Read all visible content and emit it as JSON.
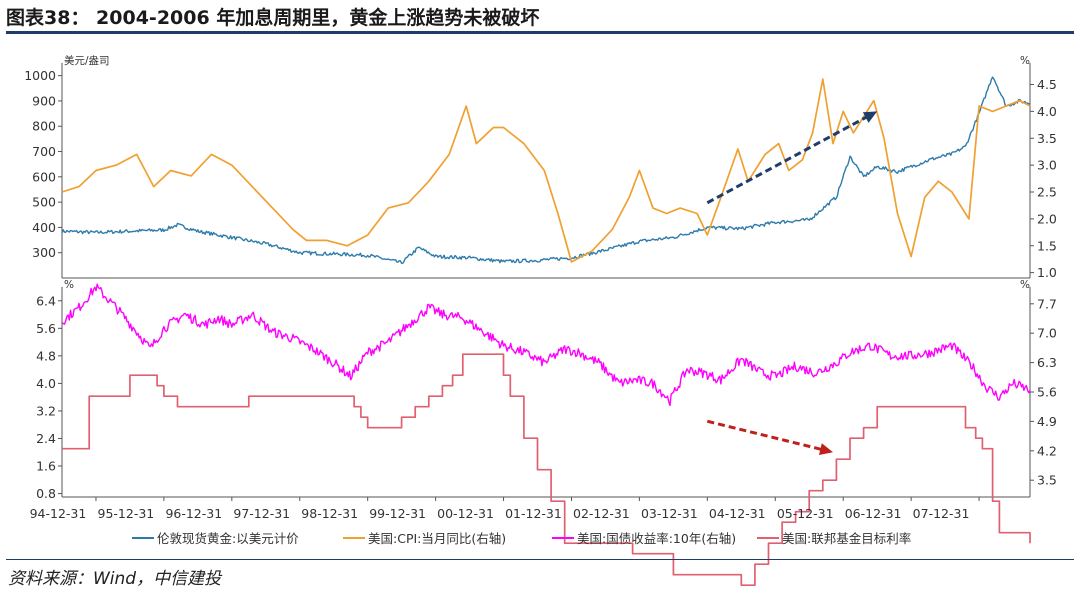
{
  "header": {
    "title": "图表38： 2004-2006 年加息周期里，黄金上涨趋势未被破坏"
  },
  "footer": {
    "source": "资料来源：Wind，中信建投"
  },
  "colors": {
    "gold": "#2e7bab",
    "cpi": "#f0a030",
    "yield": "#ff00ff",
    "fed": "#e06070",
    "arrow_top": "#1f3d6b",
    "arrow_bottom": "#c0201a",
    "rule": "#1f3d6b"
  },
  "chart_data": [
    {
      "type": "line",
      "panel": "top",
      "left_unit": "美元/盎司",
      "right_unit": "%",
      "left_ylim": [
        200,
        1050
      ],
      "left_ticks": [
        "1000",
        "900",
        "800",
        "700",
        "600",
        "500",
        "400",
        "300"
      ],
      "left_tick_values": [
        1000,
        900,
        800,
        700,
        600,
        500,
        400,
        300
      ],
      "right_ylim": [
        0.9,
        4.9
      ],
      "right_ticks": [
        "4.5",
        "4.0",
        "3.5",
        "3.0",
        "2.5",
        "2.0",
        "1.5",
        "1.0"
      ],
      "right_tick_values": [
        4.5,
        4.0,
        3.5,
        3.0,
        2.5,
        2.0,
        1.5,
        1.0
      ],
      "series": [
        {
          "name": "伦敦现货黄金:以美元计价",
          "axis": "left",
          "x": [
            1994.5,
            1995.0,
            1995.5,
            1996.0,
            1996.2,
            1996.5,
            1997.0,
            1997.5,
            1998.0,
            1998.5,
            1999.0,
            1999.5,
            1999.75,
            2000.0,
            2000.5,
            2001.0,
            2001.5,
            2002.0,
            2002.5,
            2003.0,
            2003.5,
            2004.0,
            2004.5,
            2005.0,
            2005.5,
            2005.9,
            2006.1,
            2006.3,
            2006.5,
            2006.8,
            2007.0,
            2007.3,
            2007.6,
            2007.8,
            2008.0,
            2008.2,
            2008.4,
            2008.6,
            2008.75
          ],
          "y": [
            385,
            380,
            385,
            390,
            410,
            385,
            360,
            335,
            300,
            295,
            290,
            260,
            320,
            285,
            280,
            265,
            270,
            280,
            310,
            345,
            360,
            400,
            395,
            420,
            430,
            520,
            680,
            600,
            640,
            620,
            640,
            670,
            690,
            720,
            850,
            1000,
            880,
            900,
            890
          ]
        },
        {
          "name": "美国:CPI:当月同比(右轴)",
          "axis": "right",
          "x": [
            1994.5,
            1994.75,
            1995.0,
            1995.3,
            1995.6,
            1995.85,
            1996.1,
            1996.4,
            1996.7,
            1997.0,
            1997.3,
            1997.6,
            1997.9,
            1998.1,
            1998.4,
            1998.7,
            1999.0,
            1999.3,
            1999.6,
            1999.9,
            2000.2,
            2000.45,
            2000.6,
            2000.85,
            2001.0,
            2001.3,
            2001.6,
            2001.8,
            2002.0,
            2002.3,
            2002.6,
            2002.85,
            2003.0,
            2003.2,
            2003.4,
            2003.6,
            2003.85,
            2004.0,
            2004.2,
            2004.45,
            2004.6,
            2004.85,
            2005.05,
            2005.2,
            2005.4,
            2005.55,
            2005.7,
            2005.85,
            2006.0,
            2006.15,
            2006.3,
            2006.45,
            2006.6,
            2006.8,
            2007.0,
            2007.2,
            2007.4,
            2007.6,
            2007.85,
            2008.0,
            2008.2,
            2008.4,
            2008.6,
            2008.75
          ],
          "y": [
            2.5,
            2.6,
            2.9,
            3.0,
            3.2,
            2.6,
            2.9,
            2.8,
            3.2,
            3.0,
            2.6,
            2.2,
            1.8,
            1.6,
            1.6,
            1.5,
            1.7,
            2.2,
            2.3,
            2.7,
            3.2,
            4.1,
            3.4,
            3.7,
            3.7,
            3.4,
            2.9,
            2.1,
            1.2,
            1.4,
            1.8,
            2.4,
            2.9,
            2.2,
            2.1,
            2.2,
            2.1,
            1.7,
            2.4,
            3.3,
            2.7,
            3.2,
            3.4,
            2.9,
            3.1,
            3.6,
            4.6,
            3.4,
            4.0,
            3.6,
            3.9,
            4.2,
            3.5,
            2.1,
            1.3,
            2.4,
            2.7,
            2.5,
            2.0,
            4.1,
            4.0,
            4.1,
            4.2,
            4.1
          ]
        }
      ],
      "annotations": [
        {
          "type": "arrow",
          "from": [
            2004.0,
            2.3
          ],
          "to": [
            2006.5,
            4.0
          ],
          "color": "#1f3d6b"
        }
      ]
    },
    {
      "type": "line",
      "panel": "bottom",
      "left_unit": "%",
      "right_unit": "%",
      "left_ylim": [
        0.7,
        6.8
      ],
      "left_ticks": [
        "6.4",
        "5.6",
        "4.8",
        "4.0",
        "3.2",
        "2.4",
        "1.6",
        "0.8"
      ],
      "left_tick_values": [
        6.4,
        5.6,
        4.8,
        4.0,
        3.2,
        2.4,
        1.6,
        0.8
      ],
      "right_ylim": [
        3.1,
        8.1
      ],
      "right_ticks": [
        "7.7",
        "7.0",
        "6.3",
        "5.6",
        "4.9",
        "4.2",
        "3.5"
      ],
      "right_tick_values": [
        7.7,
        7.0,
        6.3,
        5.6,
        4.9,
        4.2,
        3.5
      ],
      "series": [
        {
          "name": "美国:国债收益率:10年(右轴)",
          "axis": "left",
          "x": [
            1994.5,
            1994.75,
            1995.0,
            1995.3,
            1995.6,
            1995.8,
            1996.0,
            1996.3,
            1996.6,
            1996.8,
            1997.0,
            1997.3,
            1997.6,
            1997.9,
            1998.2,
            1998.5,
            1998.75,
            1999.0,
            1999.3,
            1999.6,
            1999.9,
            2000.1,
            2000.4,
            2000.7,
            2001.0,
            2001.3,
            2001.6,
            2001.9,
            2002.1,
            2002.4,
            2002.7,
            2002.95,
            2003.2,
            2003.45,
            2003.7,
            2003.95,
            2004.2,
            2004.5,
            2004.8,
            2005.0,
            2005.3,
            2005.6,
            2005.9,
            2006.1,
            2006.4,
            2006.7,
            2007.0,
            2007.3,
            2007.6,
            2007.9,
            2008.1,
            2008.3,
            2008.5,
            2008.75
          ],
          "y": [
            5.8,
            6.2,
            6.8,
            6.2,
            5.5,
            5.0,
            5.6,
            6.0,
            5.7,
            5.9,
            5.7,
            6.0,
            5.5,
            5.3,
            5.0,
            4.6,
            4.2,
            4.9,
            5.2,
            5.7,
            6.2,
            6.0,
            5.9,
            5.5,
            5.1,
            4.9,
            4.6,
            5.0,
            4.9,
            4.6,
            4.0,
            4.1,
            4.0,
            3.5,
            4.4,
            4.3,
            4.1,
            4.7,
            4.3,
            4.2,
            4.5,
            4.3,
            4.6,
            4.9,
            5.1,
            4.8,
            4.8,
            4.9,
            5.1,
            4.5,
            3.9,
            3.6,
            4.0,
            3.8
          ]
        },
        {
          "name": "美国:联邦基金目标利率",
          "axis": "right",
          "x": [
            1994.5,
            1994.9,
            1995.5,
            1995.9,
            1996.0,
            1996.2,
            1997.0,
            1997.25,
            1998.8,
            1998.9,
            1999.0,
            1999.5,
            1999.7,
            1999.9,
            2000.1,
            2000.25,
            2000.4,
            2001.0,
            2001.1,
            2001.3,
            2001.5,
            2001.7,
            2001.9,
            2002.9,
            2003.5,
            2004.5,
            2004.7,
            2004.9,
            2005.1,
            2005.3,
            2005.5,
            2005.7,
            2005.9,
            2006.1,
            2006.3,
            2006.5,
            2007.7,
            2007.8,
            2007.95,
            2008.05,
            2008.2,
            2008.3,
            2008.75
          ],
          "y": [
            4.25,
            5.5,
            6.0,
            5.75,
            5.5,
            5.25,
            5.25,
            5.5,
            5.25,
            5.0,
            4.75,
            5.0,
            5.25,
            5.5,
            5.75,
            6.0,
            6.5,
            6.0,
            5.5,
            4.5,
            3.75,
            3.0,
            2.0,
            1.75,
            1.25,
            1.0,
            1.5,
            2.0,
            2.5,
            2.75,
            3.25,
            3.5,
            4.0,
            4.5,
            4.75,
            5.25,
            5.25,
            4.75,
            4.5,
            4.25,
            3.0,
            2.25,
            2.0
          ]
        }
      ],
      "annotations": [
        {
          "type": "arrow",
          "from": [
            2004.0,
            2.9
          ],
          "to": [
            2005.85,
            2.0
          ],
          "color": "#c0201a"
        }
      ]
    }
  ],
  "x_axis": {
    "labels": [
      "94-12-31",
      "95-12-31",
      "96-12-31",
      "97-12-31",
      "98-12-31",
      "99-12-31",
      "00-12-31",
      "01-12-31",
      "02-12-31",
      "03-12-31",
      "04-12-31",
      "05-12-31",
      "06-12-31",
      "07-12-31"
    ],
    "values": [
      1995.0,
      1996.0,
      1997.0,
      1998.0,
      1999.0,
      2000.0,
      2001.0,
      2002.0,
      2003.0,
      2004.0,
      2005.0,
      2006.0,
      2007.0,
      2008.0
    ],
    "range": [
      1994.5,
      2008.75
    ]
  },
  "legend": {
    "placement": "bottom",
    "items": [
      "伦敦现货黄金:以美元计价",
      "美国:CPI:当月同比(右轴)",
      "美国:国债收益率:10年(右轴)",
      "美国:联邦基金目标利率"
    ]
  }
}
